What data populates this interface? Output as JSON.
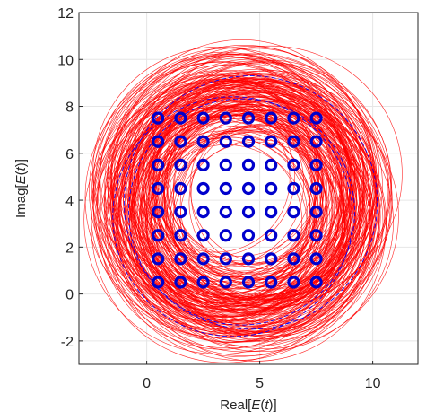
{
  "chart_data": {
    "type": "scatter",
    "xlabel": "Real[E(t)]",
    "ylabel": "Imag[E(t)]",
    "xlim": [
      -3,
      12
    ],
    "ylim": [
      -3,
      12
    ],
    "xticks": [
      0,
      5,
      10
    ],
    "yticks": [
      -2,
      0,
      2,
      4,
      6,
      8,
      10,
      12
    ],
    "xtick_labels": [
      "0",
      "5",
      "10"
    ],
    "ytick_labels": [
      "-2",
      "0",
      "2",
      "4",
      "6",
      "8",
      "10",
      "12"
    ],
    "grid": true,
    "constellation": {
      "marker": "circle",
      "color": "#0000cc",
      "x": [
        0.5,
        1.5,
        2.5,
        3.5,
        4.5,
        5.5,
        6.5,
        7.5
      ],
      "y": [
        0.5,
        1.5,
        2.5,
        3.5,
        4.5,
        5.5,
        6.5,
        7.5
      ]
    },
    "trajectory_color": "#ff0000",
    "envelope_color": "#0000ff",
    "trajectory_center": [
      4.2,
      4.0
    ],
    "trajectory_radius_range": [
      3.2,
      6.0
    ],
    "envelope_circles": [
      {
        "cx": 3.8,
        "cy": 3.3,
        "r": 5.3
      },
      {
        "cx": 4.6,
        "cy": 3.9,
        "r": 5.6
      },
      {
        "cx": 4.2,
        "cy": 3.5,
        "r": 5.0
      }
    ]
  }
}
